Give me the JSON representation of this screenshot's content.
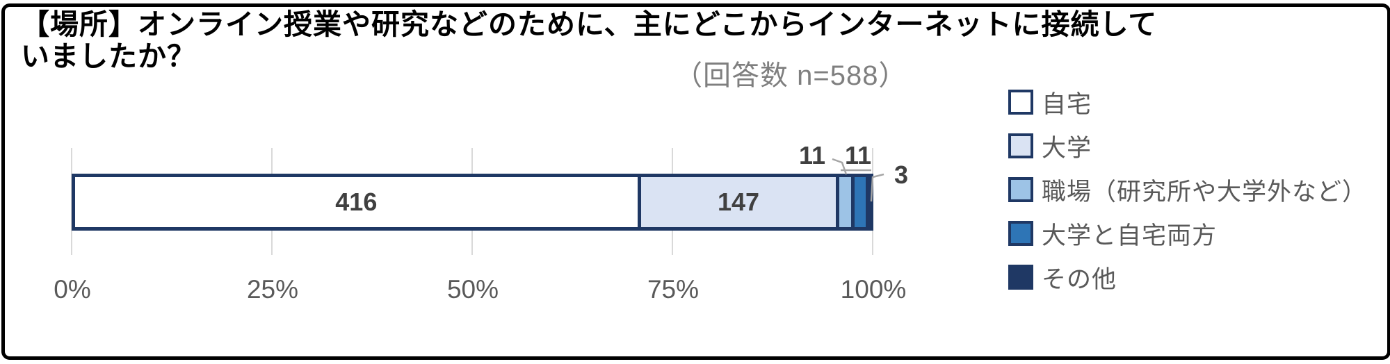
{
  "title": {
    "line1": "【場所】オンライン授業や研究などのために、主にどこからインターネットに接続して",
    "line2": "いましたか？",
    "response_note": "（回答数 n=588）"
  },
  "chart_data": {
    "type": "bar",
    "subtype": "stacked-horizontal-100percent",
    "title": "【場所】オンライン授業や研究などのために、主にどこからインターネットに接続していましたか？",
    "n": 588,
    "series": [
      {
        "name": "自宅",
        "value": 416,
        "color": "#FFFFFF"
      },
      {
        "name": "大学",
        "value": 147,
        "color": "#DAE3F3"
      },
      {
        "name": "職場（研究所や大学外など）",
        "value": 11,
        "color": "#9DC3E6"
      },
      {
        "name": "大学と自宅両方",
        "value": 11,
        "color": "#2E75B6"
      },
      {
        "name": "その他",
        "value": 3,
        "color": "#1F3864"
      }
    ],
    "x_ticks": [
      "0%",
      "25%",
      "50%",
      "75%",
      "100%"
    ],
    "xlim": [
      "0%",
      "100%"
    ],
    "grid": "vertical-on",
    "legend_position": "right",
    "colors": {
      "segment_border": "#1F3864",
      "gridline": "#D9D9D9",
      "value_label": "#404040",
      "axis_label": "#595959",
      "note_text": "#7F7F7F",
      "leader_line": "#A6A6A6",
      "frame_border": "#000000"
    }
  }
}
